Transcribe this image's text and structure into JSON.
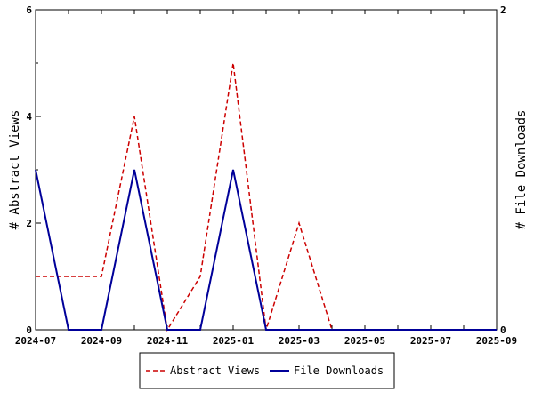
{
  "chart_data": {
    "type": "line",
    "xlabel": "",
    "ylabel_left": "# Abstract Views",
    "ylabel_right": "# File Downloads",
    "x_ticks": [
      "2024-07",
      "2024-09",
      "2024-11",
      "2025-01",
      "2025-03",
      "2025-05",
      "2025-07",
      "2025-09"
    ],
    "x": [
      "2024-07",
      "2024-08",
      "2024-09",
      "2024-10",
      "2024-11",
      "2024-12",
      "2025-01",
      "2025-02",
      "2025-03",
      "2025-04",
      "2025-05",
      "2025-06",
      "2025-07",
      "2025-08",
      "2025-09"
    ],
    "y_left_ticks": [
      "0",
      "2",
      "4",
      "6"
    ],
    "y_right_ticks": [
      "0",
      "2"
    ],
    "y_left_lim": [
      0,
      6
    ],
    "y_right_lim": [
      0,
      2
    ],
    "grid": false,
    "legend_position": "bottom",
    "series": [
      {
        "name": "Abstract Views",
        "axis": "left",
        "color": "#cc0000",
        "style": "dashed",
        "values": [
          1,
          1,
          1,
          4,
          0,
          1,
          5,
          0,
          2,
          0,
          0,
          0,
          0,
          0,
          0
        ]
      },
      {
        "name": "File Downloads",
        "axis": "right",
        "color": "#000099",
        "style": "solid",
        "values": [
          1,
          0,
          0,
          1,
          0,
          0,
          1,
          0,
          0,
          0,
          0,
          0,
          0,
          0,
          0
        ]
      }
    ]
  }
}
